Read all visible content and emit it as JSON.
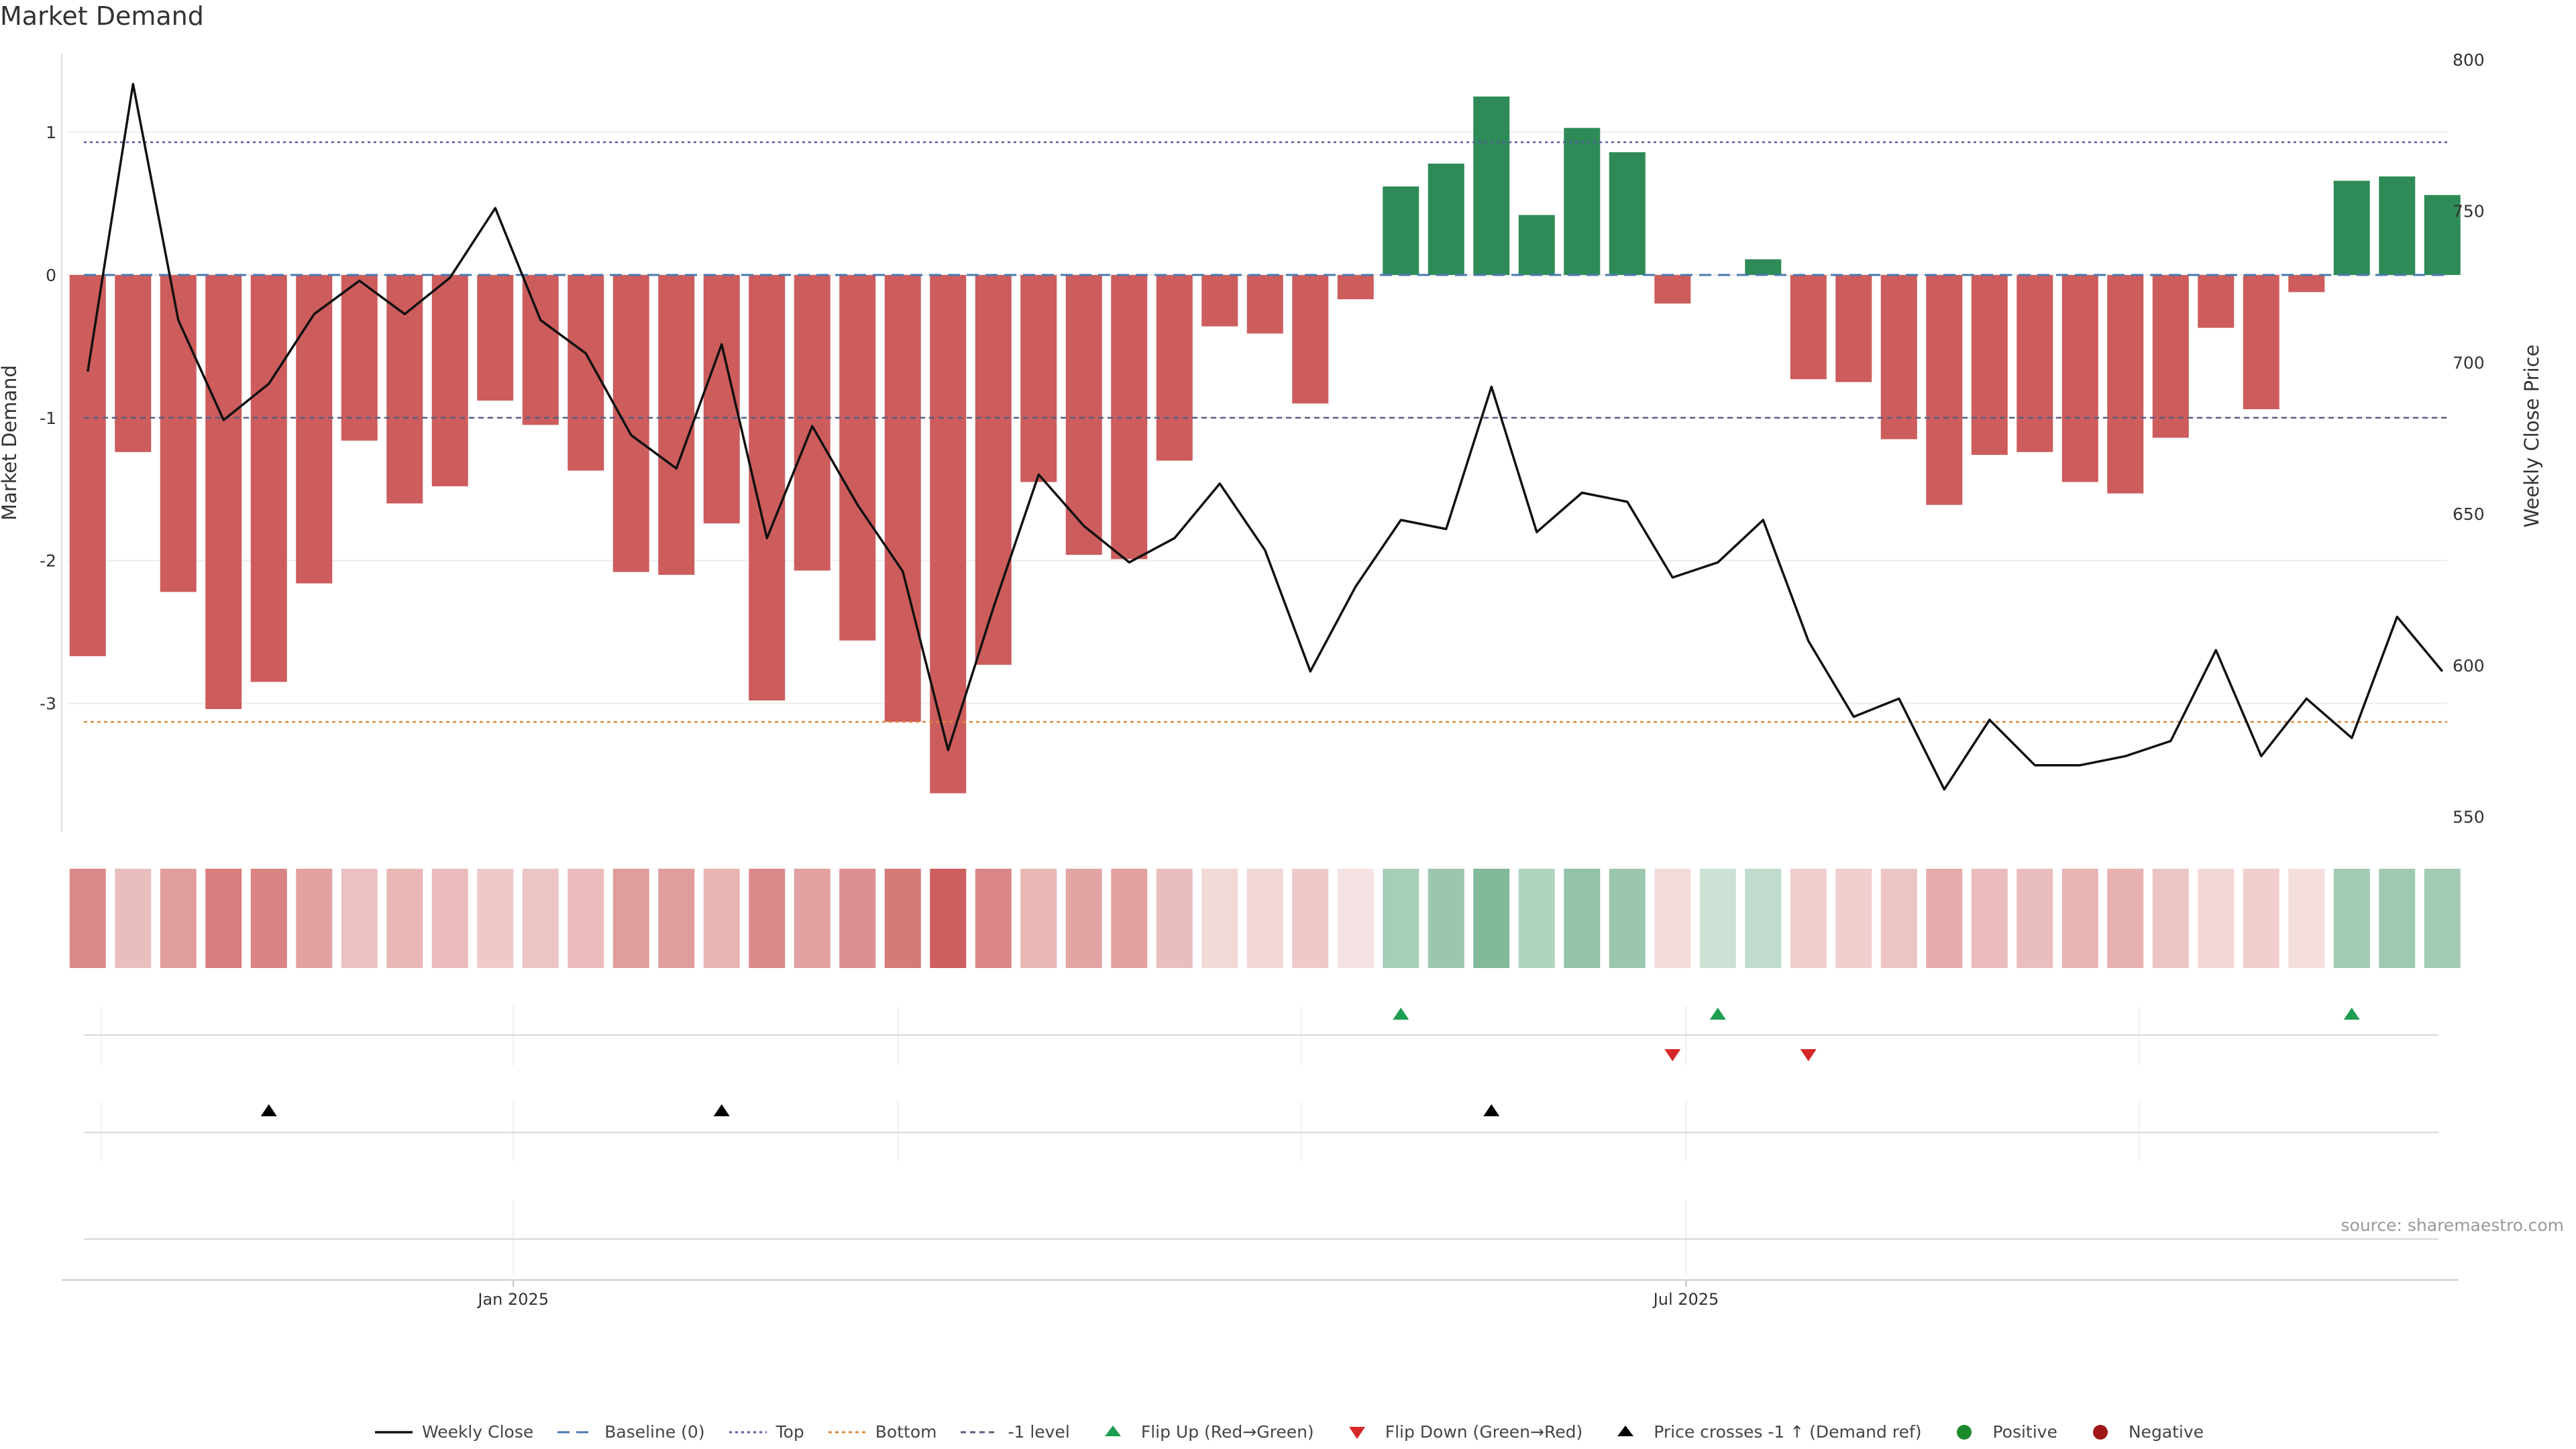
{
  "chart_data": {
    "type": "bar",
    "title": "Market Demand",
    "ylabel": "Market Demand",
    "y2label": "Weekly Close Price",
    "ylim": [
      -3.9,
      1.55
    ],
    "y2lim": [
      545,
      802
    ],
    "yticks": [
      1,
      0,
      -1,
      -2,
      -3
    ],
    "y2ticks": [
      800,
      750,
      700,
      650,
      600,
      550
    ],
    "xticks": [
      {
        "label": "Jan 2025",
        "index": 9.4
      },
      {
        "label": "Jul 2025",
        "index": 35.3
      }
    ],
    "levels": {
      "top": 0.93,
      "baseline": 0,
      "minus_one": -1,
      "bottom": -3.13
    },
    "demand": [
      -2.67,
      -1.24,
      -2.22,
      -3.04,
      -2.85,
      -2.16,
      -1.16,
      -1.6,
      -1.48,
      -0.88,
      -1.05,
      -1.37,
      -2.08,
      -2.1,
      -1.74,
      -2.98,
      -2.07,
      -2.56,
      -3.13,
      -3.63,
      -2.73,
      -1.45,
      -1.96,
      -1.99,
      -1.3,
      -0.36,
      -0.41,
      -0.9,
      -0.17,
      0.62,
      0.78,
      1.25,
      0.42,
      1.03,
      0.86,
      -0.2,
      0.0,
      0.11,
      -0.73,
      -0.75,
      -1.15,
      -1.61,
      -1.26,
      -1.24,
      -1.45,
      -1.53,
      -1.14,
      -0.37,
      -0.94,
      -0.12,
      0.66,
      0.69,
      0.56
    ],
    "strength": [
      0.72,
      0.4,
      0.6,
      0.8,
      0.76,
      0.58,
      0.38,
      0.45,
      0.42,
      0.33,
      0.36,
      0.42,
      0.6,
      0.6,
      0.46,
      0.72,
      0.58,
      0.68,
      0.82,
      0.98,
      0.74,
      0.45,
      0.56,
      0.58,
      0.4,
      0.24,
      0.25,
      0.33,
      0.18,
      0.42,
      0.48,
      0.6,
      0.38,
      0.52,
      0.48,
      0.22,
      0.25,
      0.3,
      0.3,
      0.3,
      0.36,
      0.52,
      0.42,
      0.4,
      0.46,
      0.48,
      0.36,
      0.25,
      0.3,
      0.2,
      0.45,
      0.46,
      0.45
    ],
    "price": [
      697,
      792,
      714,
      681,
      693,
      716,
      727,
      716,
      728,
      751,
      714,
      703,
      676,
      665,
      706,
      642,
      679,
      653,
      631,
      572,
      619,
      663,
      646,
      634,
      642,
      660,
      638,
      598,
      626,
      648,
      645,
      692,
      644,
      657,
      654,
      629,
      634,
      648,
      608,
      583,
      589,
      559,
      582,
      567,
      567,
      570,
      575,
      605,
      570,
      589,
      576,
      616,
      598
    ],
    "flip_up": [
      29,
      36,
      50
    ],
    "flip_down": [
      35,
      38
    ],
    "price_cross": [
      4,
      14,
      31
    ],
    "colors": {
      "positive": "#2e8b57",
      "negative": "#cd5c5c",
      "price": "#111111",
      "baseline": "#4a7ab0",
      "top": "#5858a8",
      "bottom": "#e08a3c",
      "minus_one": "#556080",
      "flip_up": "#1e9e50",
      "flip_down": "#d62728",
      "cross": "#000000",
      "dot_positive": "#1e8a2e",
      "dot_negative": "#a01818"
    },
    "legend": [
      {
        "key": "weekly_close",
        "label": "Weekly Close"
      },
      {
        "key": "baseline",
        "label": "Baseline (0)"
      },
      {
        "key": "top",
        "label": "Top"
      },
      {
        "key": "bottom",
        "label": "Bottom"
      },
      {
        "key": "minus_one",
        "label": "-1 level"
      },
      {
        "key": "flip_up",
        "label": "Flip Up (Red→Green)"
      },
      {
        "key": "flip_down",
        "label": "Flip Down (Green→Red)"
      },
      {
        "key": "cross",
        "label": "Price crosses -1 ↑ (Demand ref)"
      },
      {
        "key": "positive",
        "label": "Positive"
      },
      {
        "key": "negative",
        "label": "Negative"
      }
    ],
    "source": "source: sharemaestro.com"
  }
}
